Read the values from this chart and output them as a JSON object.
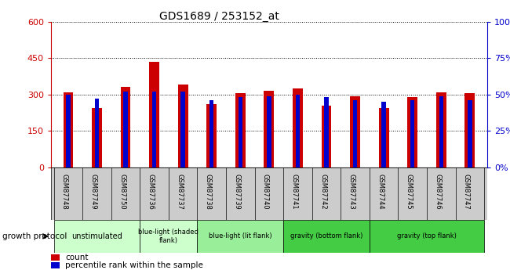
{
  "title": "GDS1689 / 253152_at",
  "samples": [
    "GSM87748",
    "GSM87749",
    "GSM87750",
    "GSM87736",
    "GSM87737",
    "GSM87738",
    "GSM87739",
    "GSM87740",
    "GSM87741",
    "GSM87742",
    "GSM87743",
    "GSM87744",
    "GSM87745",
    "GSM87746",
    "GSM87747"
  ],
  "count_values": [
    310,
    243,
    330,
    435,
    340,
    260,
    305,
    315,
    325,
    255,
    293,
    245,
    290,
    308,
    305
  ],
  "percentile_values": [
    50,
    47,
    52,
    52,
    52,
    46,
    48,
    49,
    50,
    48,
    46,
    45,
    46,
    49,
    46
  ],
  "bar_color_red": "#cc0000",
  "bar_color_blue": "#0000cc",
  "ylim_left": [
    0,
    600
  ],
  "ylim_right": [
    0,
    100
  ],
  "yticks_left": [
    0,
    150,
    300,
    450,
    600
  ],
  "yticks_right": [
    0,
    25,
    50,
    75,
    100
  ],
  "ytick_labels_left": [
    "0",
    "150",
    "300",
    "450",
    "600"
  ],
  "ytick_labels_right": [
    "0%",
    "25%",
    "50%",
    "75%",
    "100%"
  ],
  "groups": [
    {
      "label": "unstimulated",
      "start": 0,
      "end": 3,
      "color": "#ccffcc"
    },
    {
      "label": "blue-light (shaded\nflank)",
      "start": 3,
      "end": 5,
      "color": "#ccffcc"
    },
    {
      "label": "blue-light (lit flank)",
      "start": 5,
      "end": 8,
      "color": "#99ee99"
    },
    {
      "label": "gravity (bottom flank)",
      "start": 8,
      "end": 11,
      "color": "#44cc44"
    },
    {
      "label": "gravity (top flank)",
      "start": 11,
      "end": 15,
      "color": "#44cc44"
    }
  ],
  "growth_protocol_label": "growth protocol",
  "legend_count_label": "count",
  "legend_percentile_label": "percentile rank within the sample",
  "background_sample_row": "#cccccc",
  "bar_width": 0.35,
  "blue_bar_width": 0.15
}
